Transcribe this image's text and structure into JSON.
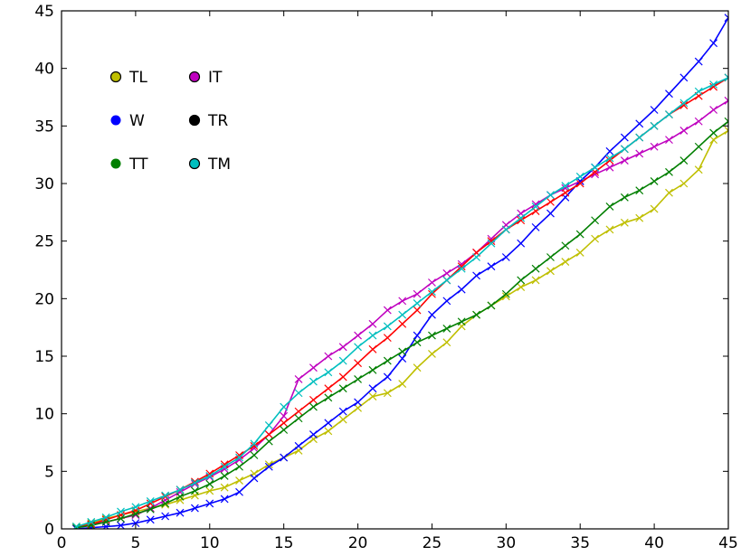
{
  "chart_data": {
    "type": "line",
    "title": "",
    "xlabel": "",
    "ylabel": "",
    "xlim": [
      0,
      45
    ],
    "ylim": [
      0,
      45
    ],
    "xticks": [
      "0",
      "5",
      "10",
      "15",
      "20",
      "25",
      "30",
      "35",
      "40",
      "45"
    ],
    "yticks": [
      "0",
      "5",
      "10",
      "15",
      "20",
      "25",
      "30",
      "35",
      "40",
      "45"
    ],
    "grid": false,
    "marker": "x",
    "legend_placement": "upper-left",
    "series": [
      {
        "name": "TL",
        "color": "#bfbf00",
        "marker_style": "circle-outline-dark",
        "x": [
          1,
          2,
          3,
          4,
          5,
          6,
          7,
          8,
          9,
          10,
          11,
          12,
          13,
          14,
          15,
          16,
          17,
          18,
          19,
          20,
          21,
          22,
          23,
          24,
          25,
          26,
          27,
          28,
          29,
          30,
          31,
          32,
          33,
          34,
          35,
          36,
          37,
          38,
          39,
          40,
          41,
          42,
          43,
          44,
          45
        ],
        "y": [
          0.2,
          0.5,
          0.9,
          1.2,
          1.5,
          1.8,
          2.1,
          2.5,
          2.9,
          3.3,
          3.6,
          4.2,
          4.8,
          5.6,
          6.2,
          6.8,
          7.8,
          8.5,
          9.5,
          10.5,
          11.5,
          11.8,
          12.6,
          14.0,
          15.2,
          16.2,
          17.6,
          18.6,
          19.4,
          20.2,
          21.0,
          21.6,
          22.4,
          23.2,
          24.0,
          25.2,
          26.0,
          26.6,
          27.0,
          27.8,
          29.2,
          30.0,
          31.2,
          33.8,
          34.6
        ]
      },
      {
        "name": "IT",
        "color": "#bf00bf",
        "marker_style": "circle-outline-dark",
        "x": [
          1,
          2,
          3,
          4,
          5,
          6,
          7,
          8,
          9,
          10,
          11,
          12,
          13,
          14,
          15,
          16,
          17,
          18,
          19,
          20,
          21,
          22,
          23,
          24,
          25,
          26,
          27,
          28,
          29,
          30,
          31,
          32,
          33,
          34,
          35,
          36,
          37,
          38,
          39,
          40,
          41,
          42,
          43,
          44,
          45
        ],
        "y": [
          0.1,
          0.4,
          0.6,
          0.9,
          1.2,
          1.8,
          2.5,
          3.2,
          3.9,
          4.5,
          5.2,
          6.0,
          7.0,
          8.2,
          9.8,
          13.0,
          14.0,
          15.0,
          15.8,
          16.8,
          17.8,
          19.0,
          19.8,
          20.4,
          21.4,
          22.2,
          23.0,
          24.0,
          25.2,
          26.4,
          27.4,
          28.2,
          29.0,
          29.6,
          30.2,
          30.8,
          31.4,
          32.0,
          32.6,
          33.2,
          33.8,
          34.6,
          35.4,
          36.4,
          37.2
        ]
      },
      {
        "name": "W",
        "color": "#0000ff",
        "marker_style": "circle-filled",
        "x": [
          1,
          2,
          3,
          4,
          5,
          6,
          7,
          8,
          9,
          10,
          11,
          12,
          13,
          14,
          15,
          16,
          17,
          18,
          19,
          20,
          21,
          22,
          23,
          24,
          25,
          26,
          27,
          28,
          29,
          30,
          31,
          32,
          33,
          34,
          35,
          36,
          37,
          38,
          39,
          40,
          41,
          42,
          43,
          44,
          45
        ],
        "y": [
          0.0,
          0.1,
          0.2,
          0.3,
          0.5,
          0.8,
          1.1,
          1.4,
          1.8,
          2.2,
          2.6,
          3.2,
          4.4,
          5.4,
          6.2,
          7.2,
          8.2,
          9.2,
          10.2,
          11.0,
          12.2,
          13.2,
          14.8,
          16.8,
          18.6,
          19.8,
          20.8,
          22.0,
          22.8,
          23.6,
          24.8,
          26.2,
          27.4,
          28.8,
          30.2,
          31.4,
          32.8,
          34.0,
          35.2,
          36.4,
          37.8,
          39.2,
          40.6,
          42.2,
          44.4
        ]
      },
      {
        "name": "TR",
        "color": "#ff0000",
        "marker_style": "circle-filled-dark",
        "x": [
          1,
          2,
          3,
          4,
          5,
          6,
          7,
          8,
          9,
          10,
          11,
          12,
          13,
          14,
          15,
          16,
          17,
          18,
          19,
          20,
          21,
          22,
          23,
          24,
          25,
          26,
          27,
          28,
          29,
          30,
          31,
          32,
          33,
          34,
          35,
          36,
          37,
          38,
          39,
          40,
          41,
          42,
          43,
          44,
          45
        ],
        "y": [
          0.1,
          0.4,
          0.8,
          1.2,
          1.6,
          2.2,
          2.8,
          3.4,
          4.1,
          4.8,
          5.6,
          6.4,
          7.2,
          8.2,
          9.2,
          10.2,
          11.2,
          12.2,
          13.2,
          14.4,
          15.6,
          16.6,
          17.8,
          19.0,
          20.4,
          21.6,
          22.8,
          24.0,
          25.0,
          26.0,
          26.8,
          27.6,
          28.4,
          29.2,
          30.0,
          31.0,
          32.0,
          33.0,
          34.0,
          35.0,
          36.0,
          36.8,
          37.6,
          38.4,
          39.2
        ]
      },
      {
        "name": "TT",
        "color": "#007f00",
        "marker_style": "circle-filled",
        "x": [
          1,
          2,
          3,
          4,
          5,
          6,
          7,
          8,
          9,
          10,
          11,
          12,
          13,
          14,
          15,
          16,
          17,
          18,
          19,
          20,
          21,
          22,
          23,
          24,
          25,
          26,
          27,
          28,
          29,
          30,
          31,
          32,
          33,
          34,
          35,
          36,
          37,
          38,
          39,
          40,
          41,
          42,
          43,
          44,
          45
        ],
        "y": [
          0.1,
          0.3,
          0.6,
          0.9,
          1.3,
          1.7,
          2.2,
          2.8,
          3.3,
          3.9,
          4.6,
          5.4,
          6.4,
          7.6,
          8.6,
          9.6,
          10.6,
          11.4,
          12.2,
          13.0,
          13.8,
          14.6,
          15.4,
          16.2,
          16.8,
          17.4,
          18.0,
          18.6,
          19.4,
          20.4,
          21.6,
          22.6,
          23.6,
          24.6,
          25.6,
          26.8,
          28.0,
          28.8,
          29.4,
          30.2,
          31.0,
          32.0,
          33.2,
          34.4,
          35.4
        ]
      },
      {
        "name": "TM",
        "color": "#00bfbf",
        "marker_style": "circle-outline-dark",
        "x": [
          1,
          2,
          3,
          4,
          5,
          6,
          7,
          8,
          9,
          10,
          11,
          12,
          13,
          14,
          15,
          16,
          17,
          18,
          19,
          20,
          21,
          22,
          23,
          24,
          25,
          26,
          27,
          28,
          29,
          30,
          31,
          32,
          33,
          34,
          35,
          36,
          37,
          38,
          39,
          40,
          41,
          42,
          43,
          44,
          45
        ],
        "y": [
          0.2,
          0.6,
          1.0,
          1.5,
          1.9,
          2.4,
          2.9,
          3.4,
          4.0,
          4.6,
          5.4,
          6.2,
          7.4,
          9.0,
          10.6,
          11.8,
          12.8,
          13.6,
          14.6,
          15.8,
          16.8,
          17.6,
          18.6,
          19.6,
          20.6,
          21.6,
          22.6,
          23.6,
          24.8,
          26.0,
          27.0,
          28.0,
          29.0,
          29.8,
          30.6,
          31.4,
          32.2,
          33.0,
          34.0,
          35.0,
          36.0,
          37.0,
          38.0,
          38.6,
          39.2
        ]
      }
    ]
  }
}
